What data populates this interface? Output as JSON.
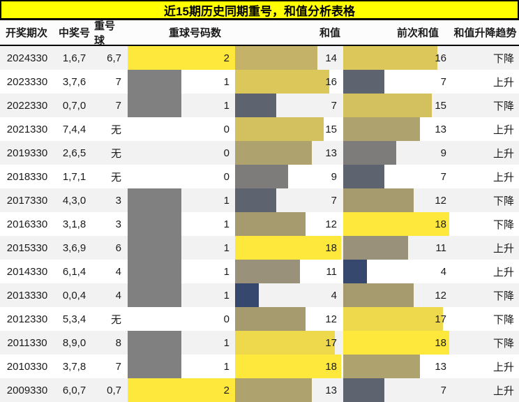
{
  "title": "近15期历史同期重号，和值分析表格",
  "chart_data": {
    "type": "table",
    "title": "近15期历史同期重号，和值分析表格",
    "columns": [
      "开奖期次",
      "中奖号",
      "重号球",
      "重球号码数",
      "和值",
      "前次和值",
      "和值升降趋势"
    ],
    "layout": {
      "databar_columns": [
        "重球号码数",
        "和值",
        "前次和值"
      ],
      "count_max": 2,
      "sum_max": 18,
      "row_stripe_color": "#f2f2f2",
      "title_bg_color": "#ffff00"
    },
    "count_colors": {
      "1": "#808080",
      "2": "#ffe83c"
    },
    "sum_colors": {
      "4": "#36486e",
      "7": "#5e6370",
      "9": "#7e7c7a",
      "11": "#99917a",
      "12": "#a59b6f",
      "13": "#aea36e",
      "14": "#c3b267",
      "15": "#d3c05e",
      "16": "#dcc75a",
      "17": "#eed94d",
      "18": "#ffe83c"
    },
    "rows": [
      {
        "period": "2024330",
        "winning": "1,6,7",
        "repeat": "6,7",
        "count": 2,
        "sum": 14,
        "prev": 16,
        "trend": "下降"
      },
      {
        "period": "2023330",
        "winning": "3,7,6",
        "repeat": "7",
        "count": 1,
        "sum": 16,
        "prev": 7,
        "trend": "上升"
      },
      {
        "period": "2022330",
        "winning": "0,7,0",
        "repeat": "7",
        "count": 1,
        "sum": 7,
        "prev": 15,
        "trend": "下降"
      },
      {
        "period": "2021330",
        "winning": "7,4,4",
        "repeat": "无",
        "count": 0,
        "sum": 15,
        "prev": 13,
        "trend": "上升"
      },
      {
        "period": "2019330",
        "winning": "2,6,5",
        "repeat": "无",
        "count": 0,
        "sum": 13,
        "prev": 9,
        "trend": "上升"
      },
      {
        "period": "2018330",
        "winning": "1,7,1",
        "repeat": "无",
        "count": 0,
        "sum": 9,
        "prev": 7,
        "trend": "上升"
      },
      {
        "period": "2017330",
        "winning": "4,3,0",
        "repeat": "3",
        "count": 1,
        "sum": 7,
        "prev": 12,
        "trend": "下降"
      },
      {
        "period": "2016330",
        "winning": "3,1,8",
        "repeat": "3",
        "count": 1,
        "sum": 12,
        "prev": 18,
        "trend": "下降"
      },
      {
        "period": "2015330",
        "winning": "3,6,9",
        "repeat": "6",
        "count": 1,
        "sum": 18,
        "prev": 11,
        "trend": "上升"
      },
      {
        "period": "2014330",
        "winning": "6,1,4",
        "repeat": "4",
        "count": 1,
        "sum": 11,
        "prev": 4,
        "trend": "上升"
      },
      {
        "period": "2013330",
        "winning": "0,0,4",
        "repeat": "4",
        "count": 1,
        "sum": 4,
        "prev": 12,
        "trend": "下降"
      },
      {
        "period": "2012330",
        "winning": "5,3,4",
        "repeat": "无",
        "count": 0,
        "sum": 12,
        "prev": 17,
        "trend": "下降"
      },
      {
        "period": "2011330",
        "winning": "8,9,0",
        "repeat": "8",
        "count": 1,
        "sum": 17,
        "prev": 18,
        "trend": "下降"
      },
      {
        "period": "2010330",
        "winning": "3,7,8",
        "repeat": "7",
        "count": 1,
        "sum": 18,
        "prev": 13,
        "trend": "上升"
      },
      {
        "period": "2009330",
        "winning": "6,0,7",
        "repeat": "0,7",
        "count": 2,
        "sum": 13,
        "prev": 7,
        "trend": "上升"
      }
    ]
  }
}
